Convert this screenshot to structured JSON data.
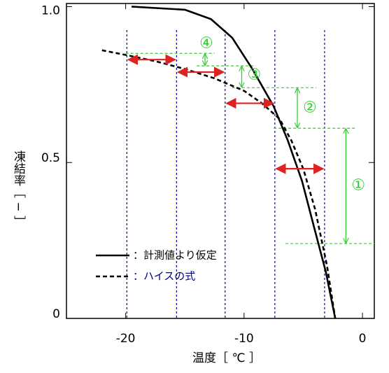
{
  "chart_data": {
    "type": "line",
    "xlabel": "温度［ ℃ ］",
    "ylabel": "凍結率［ − ］",
    "xlim": [
      -25,
      1
    ],
    "ylim": [
      0,
      1.01
    ],
    "xticks": [
      -20,
      -10,
      0
    ],
    "yticks": [
      0,
      0.5,
      {
        "value": 1,
        "label": "1.0"
      }
    ],
    "series": [
      {
        "name": "：計測値より仮定",
        "color": "#000000",
        "style": "solid",
        "label_color": "#000000",
        "x": [
          -19.5,
          -15,
          -12.8,
          -11,
          -9.3,
          -7.5,
          -6.3,
          -5.1,
          -4,
          -3.1,
          -2.3
        ],
        "values": [
          1.0,
          0.99,
          0.96,
          0.9,
          0.8,
          0.68,
          0.57,
          0.44,
          0.28,
          0.15,
          0
        ]
      },
      {
        "name": "：ハイスの式",
        "color": "#000000",
        "style": "dashed",
        "label_color": "#000080",
        "x": [
          -22,
          -20,
          -17.5,
          -15,
          -12.5,
          -10,
          -8.5,
          -7,
          -6,
          -5,
          -4,
          -3,
          -2.3
        ],
        "values": [
          0.86,
          0.845,
          0.825,
          0.8,
          0.77,
          0.73,
          0.69,
          0.64,
          0.57,
          0.48,
          0.35,
          0.17,
          0
        ]
      }
    ],
    "vlines": [
      -19.9,
      -15.7,
      -11.6,
      -7.4,
      -3.2
    ],
    "vline_color": "#0000cc",
    "guides": [
      {
        "y": 0.85,
        "x": [
          -20,
          -12.5
        ]
      },
      {
        "y": 0.81,
        "x": [
          -14,
          -9
        ]
      },
      {
        "y": 0.74,
        "x": [
          -11,
          -3.9
        ]
      },
      {
        "y": 0.61,
        "x": [
          -7.5,
          -0.5
        ]
      },
      {
        "y": 0.24,
        "x": [
          -6.5,
          1
        ]
      }
    ],
    "guide_color": "#33cc33",
    "ranges": [
      {
        "y": 0.83,
        "x": [
          -19.9,
          -15.7
        ]
      },
      {
        "y": 0.79,
        "x": [
          -15.7,
          -11.6
        ]
      },
      {
        "y": 0.69,
        "x": [
          -11.6,
          -7.4
        ]
      },
      {
        "y": 0.48,
        "x": [
          -7.4,
          -3.2
        ]
      }
    ],
    "range_color": "#dd2222",
    "steps": [
      {
        "label": "①",
        "x": -1.4,
        "y": [
          0.24,
          0.61
        ]
      },
      {
        "label": "②",
        "x": -5.5,
        "y": [
          0.61,
          0.74
        ]
      },
      {
        "label": "③",
        "x": -10.2,
        "y": [
          0.74,
          0.81
        ]
      },
      {
        "label": "④",
        "x": -13.3,
        "y": [
          0.81,
          0.85
        ]
      }
    ]
  }
}
